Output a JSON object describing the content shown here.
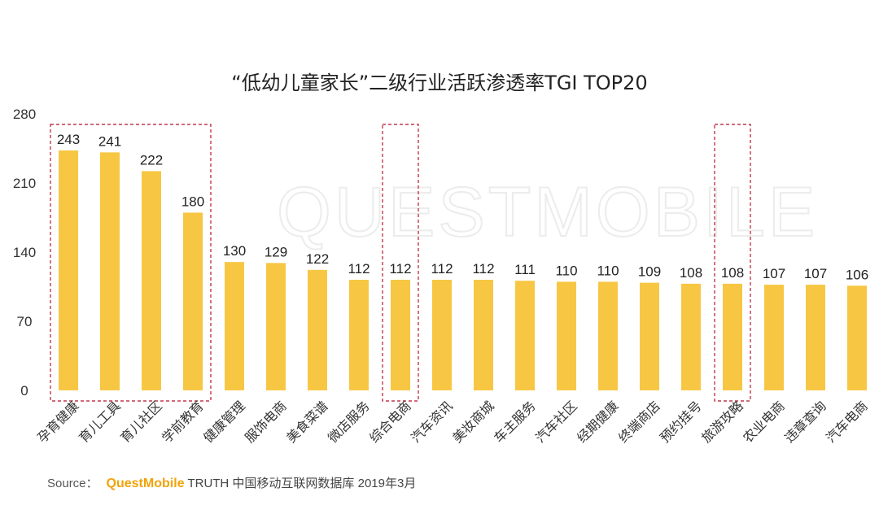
{
  "chart_data": {
    "type": "bar",
    "title": "“低幼儿童家长”二级行业活跃渗透率TGI TOP20",
    "categories": [
      "孕育健康",
      "育儿工具",
      "育儿社区",
      "学前教育",
      "健康管理",
      "服饰电商",
      "美食菜谱",
      "微店服务",
      "综合电商",
      "汽车资讯",
      "美妆商城",
      "车主服务",
      "汽车社区",
      "经期健康",
      "终端商店",
      "预约挂号",
      "旅游攻略",
      "农业电商",
      "违章查询",
      "汽车电商"
    ],
    "values": [
      243,
      241,
      222,
      180,
      130,
      129,
      122,
      112,
      112,
      112,
      112,
      111,
      110,
      110,
      109,
      108,
      108,
      107,
      107,
      106
    ],
    "value_labels": [
      "243",
      "241",
      "222",
      "180",
      "130",
      "129",
      "122",
      "112",
      "112",
      "112",
      "112",
      "111",
      "110",
      "110",
      "109",
      "108",
      "108",
      "107",
      "107",
      "106"
    ],
    "ylim": [
      0,
      280
    ],
    "yticks": [
      "0",
      "70",
      "140",
      "210",
      "280"
    ],
    "xlabel": "",
    "ylabel": "",
    "grid": false,
    "bar_color": "#F7C744",
    "highlight_color": "#C0394B",
    "highlight_groups": [
      [
        "孕育健康",
        "育儿工具",
        "育儿社区",
        "学前教育"
      ],
      [
        "综合电商"
      ],
      [
        "旅游攻略"
      ]
    ]
  },
  "watermark": "QUESTMOBILE",
  "source": {
    "label": "Source：",
    "brand": "QuestMobile",
    "rest": " TRUTH 中国移动互联网数据库 2019年3月"
  }
}
